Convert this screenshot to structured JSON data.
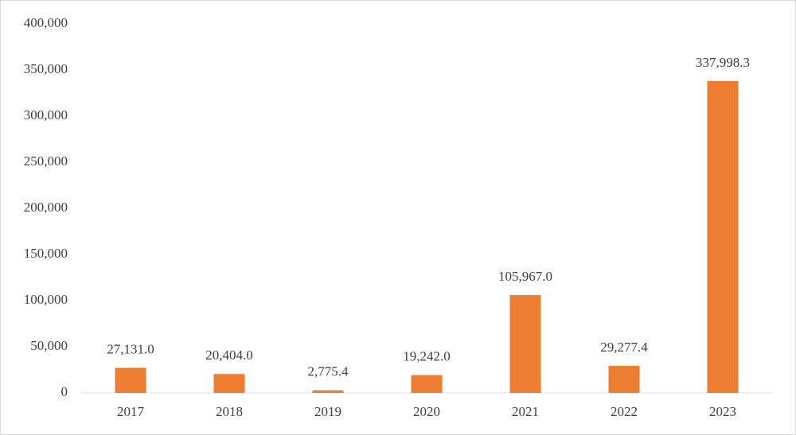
{
  "chart_data": {
    "type": "bar",
    "categories": [
      "2017",
      "2018",
      "2019",
      "2020",
      "2021",
      "2022",
      "2023"
    ],
    "values": [
      27131.0,
      20404.0,
      2775.4,
      19242.0,
      105967.0,
      29277.4,
      337998.3
    ],
    "value_labels": [
      "27,131.0",
      "20,404.0",
      "2,775.4",
      "19,242.0",
      "105,967.0",
      "29,277.4",
      "337,998.3"
    ],
    "color": "#ed7d31",
    "ylim": [
      0,
      400000
    ],
    "yticks": [
      0,
      {
        "value": 50000,
        "label": "50,000"
      },
      {
        "value": 100000,
        "label": "100,000"
      },
      {
        "value": 150000,
        "label": "150,000"
      },
      {
        "value": 200000,
        "label": "200,000"
      },
      {
        "value": 250000,
        "label": "250,000"
      },
      {
        "value": 300000,
        "label": "300,000"
      },
      {
        "value": 350000,
        "label": "350,000"
      },
      {
        "value": 400000,
        "label": "400,000"
      }
    ],
    "grid": false
  }
}
